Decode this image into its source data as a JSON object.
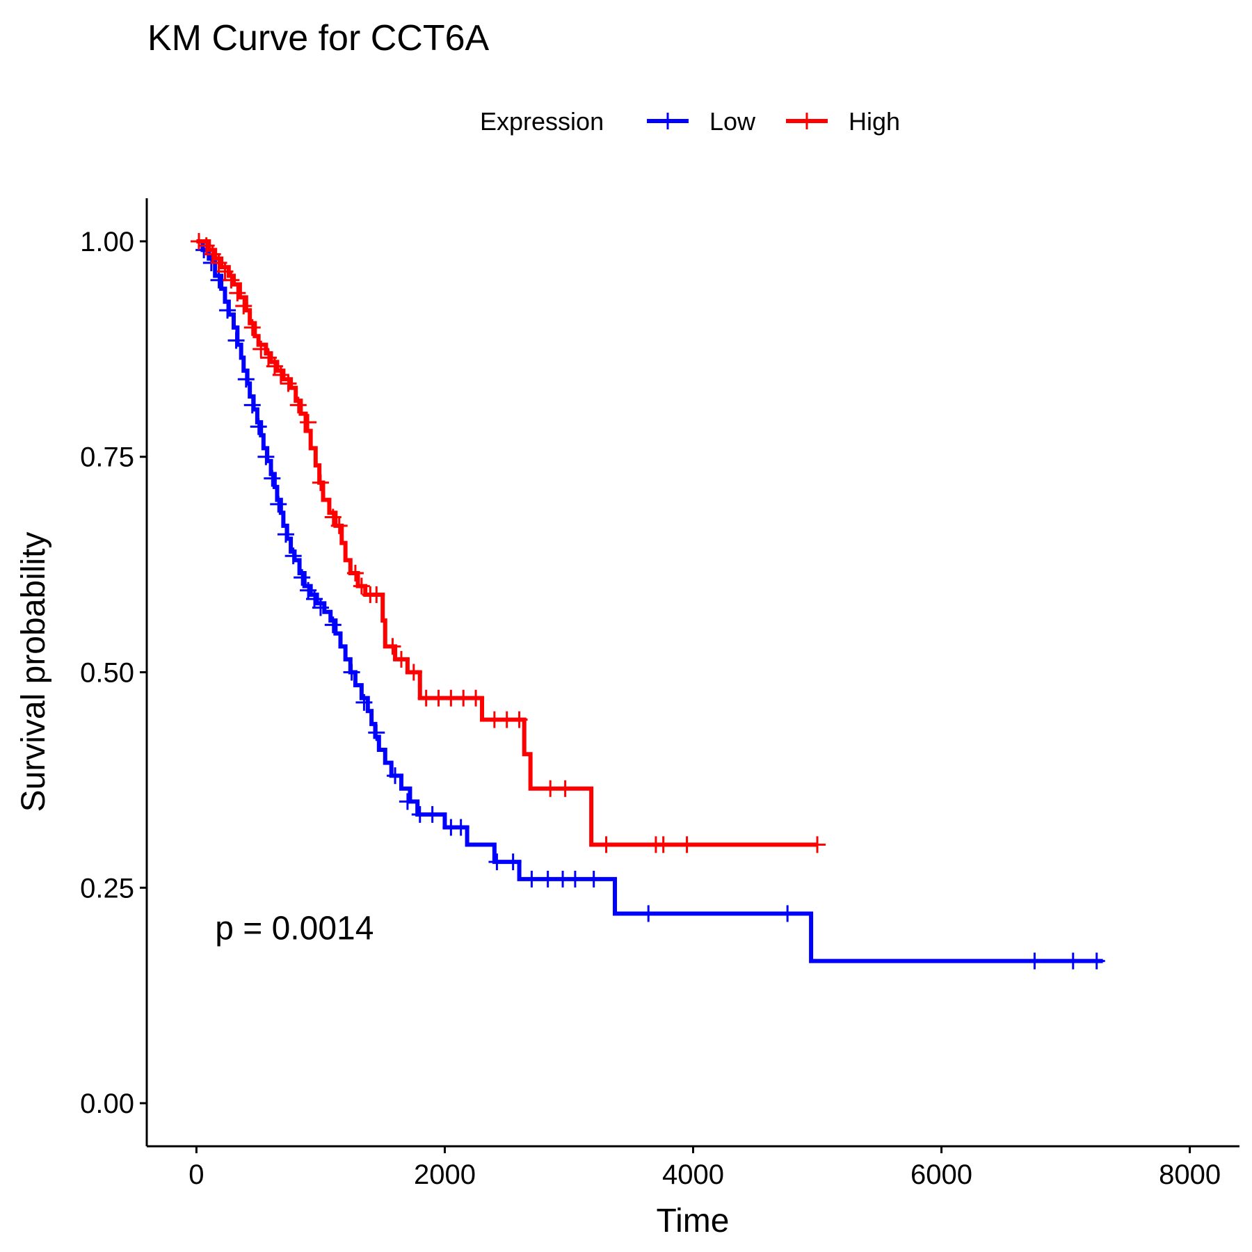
{
  "chart_data": {
    "type": "line",
    "subtype": "kaplan-meier step curve",
    "title": "KM Curve for CCT6A",
    "xlabel": "Time",
    "ylabel": "Survival probability",
    "xlim": [
      -400,
      8400
    ],
    "ylim": [
      -0.05,
      1.05
    ],
    "xticks": [
      0,
      2000,
      4000,
      6000,
      8000
    ],
    "xtick_labels": [
      "0",
      "2000",
      "4000",
      "6000",
      "8000"
    ],
    "yticks": [
      0,
      0.25,
      0.5,
      0.75,
      1.0
    ],
    "ytick_labels": [
      "0.00",
      "0.25",
      "0.50",
      "0.75",
      "1.00"
    ],
    "grid": false,
    "legend": {
      "title": "Expression",
      "placement": "top",
      "entries": [
        "Low",
        "High"
      ]
    },
    "annotation": {
      "text": "p = 0.0014",
      "x": 150,
      "y": 0.19
    },
    "series": [
      {
        "name": "Low",
        "color": "#0000FF",
        "steps": [
          [
            0,
            1.0
          ],
          [
            50,
            0.99
          ],
          [
            100,
            0.98
          ],
          [
            150,
            0.96
          ],
          [
            200,
            0.945
          ],
          [
            230,
            0.93
          ],
          [
            260,
            0.915
          ],
          [
            300,
            0.9
          ],
          [
            330,
            0.88
          ],
          [
            360,
            0.865
          ],
          [
            380,
            0.85
          ],
          [
            410,
            0.835
          ],
          [
            430,
            0.82
          ],
          [
            460,
            0.805
          ],
          [
            490,
            0.79
          ],
          [
            520,
            0.775
          ],
          [
            540,
            0.76
          ],
          [
            570,
            0.745
          ],
          [
            600,
            0.73
          ],
          [
            630,
            0.715
          ],
          [
            650,
            0.7
          ],
          [
            680,
            0.685
          ],
          [
            700,
            0.67
          ],
          [
            730,
            0.655
          ],
          [
            760,
            0.64
          ],
          [
            790,
            0.63
          ],
          [
            830,
            0.615
          ],
          [
            870,
            0.6
          ],
          [
            920,
            0.59
          ],
          [
            970,
            0.58
          ],
          [
            1030,
            0.57
          ],
          [
            1080,
            0.56
          ],
          [
            1120,
            0.545
          ],
          [
            1160,
            0.53
          ],
          [
            1200,
            0.515
          ],
          [
            1240,
            0.5
          ],
          [
            1280,
            0.485
          ],
          [
            1330,
            0.47
          ],
          [
            1380,
            0.455
          ],
          [
            1410,
            0.44
          ],
          [
            1440,
            0.425
          ],
          [
            1470,
            0.41
          ],
          [
            1520,
            0.395
          ],
          [
            1570,
            0.38
          ],
          [
            1650,
            0.365
          ],
          [
            1720,
            0.35
          ],
          [
            1780,
            0.335
          ],
          [
            2000,
            0.32
          ],
          [
            2180,
            0.3
          ],
          [
            2400,
            0.28
          ],
          [
            2600,
            0.26
          ],
          [
            3370,
            0.22
          ],
          [
            4950,
            0.165
          ],
          [
            7300,
            0.165
          ]
        ],
        "censors": [
          [
            60,
            0.99
          ],
          [
            120,
            0.975
          ],
          [
            180,
            0.955
          ],
          [
            250,
            0.92
          ],
          [
            320,
            0.885
          ],
          [
            400,
            0.84
          ],
          [
            450,
            0.81
          ],
          [
            500,
            0.785
          ],
          [
            560,
            0.75
          ],
          [
            610,
            0.725
          ],
          [
            660,
            0.695
          ],
          [
            720,
            0.66
          ],
          [
            780,
            0.635
          ],
          [
            850,
            0.61
          ],
          [
            900,
            0.595
          ],
          [
            950,
            0.585
          ],
          [
            1000,
            0.575
          ],
          [
            1100,
            0.555
          ],
          [
            1250,
            0.5
          ],
          [
            1350,
            0.465
          ],
          [
            1450,
            0.43
          ],
          [
            1600,
            0.38
          ],
          [
            1700,
            0.35
          ],
          [
            1800,
            0.335
          ],
          [
            1900,
            0.335
          ],
          [
            2050,
            0.32
          ],
          [
            2130,
            0.32
          ],
          [
            2420,
            0.28
          ],
          [
            2550,
            0.28
          ],
          [
            2700,
            0.26
          ],
          [
            2830,
            0.26
          ],
          [
            2950,
            0.26
          ],
          [
            3050,
            0.26
          ],
          [
            3200,
            0.26
          ],
          [
            3640,
            0.22
          ],
          [
            4760,
            0.22
          ],
          [
            6750,
            0.165
          ],
          [
            7060,
            0.165
          ],
          [
            7250,
            0.165
          ]
        ]
      },
      {
        "name": "High",
        "color": "#FF0000",
        "steps": [
          [
            0,
            1.0
          ],
          [
            100,
            0.99
          ],
          [
            150,
            0.98
          ],
          [
            200,
            0.97
          ],
          [
            260,
            0.96
          ],
          [
            300,
            0.95
          ],
          [
            350,
            0.935
          ],
          [
            400,
            0.92
          ],
          [
            430,
            0.905
          ],
          [
            470,
            0.89
          ],
          [
            500,
            0.88
          ],
          [
            560,
            0.87
          ],
          [
            600,
            0.86
          ],
          [
            650,
            0.85
          ],
          [
            700,
            0.84
          ],
          [
            760,
            0.83
          ],
          [
            800,
            0.815
          ],
          [
            840,
            0.8
          ],
          [
            880,
            0.78
          ],
          [
            920,
            0.76
          ],
          [
            960,
            0.74
          ],
          [
            990,
            0.72
          ],
          [
            1020,
            0.7
          ],
          [
            1070,
            0.685
          ],
          [
            1120,
            0.67
          ],
          [
            1170,
            0.65
          ],
          [
            1200,
            0.63
          ],
          [
            1240,
            0.615
          ],
          [
            1300,
            0.6
          ],
          [
            1360,
            0.59
          ],
          [
            1500,
            0.56
          ],
          [
            1520,
            0.53
          ],
          [
            1600,
            0.515
          ],
          [
            1700,
            0.5
          ],
          [
            1800,
            0.47
          ],
          [
            2300,
            0.445
          ],
          [
            2640,
            0.405
          ],
          [
            2690,
            0.365
          ],
          [
            3180,
            0.3
          ],
          [
            5000,
            0.3
          ]
        ],
        "censors": [
          [
            20,
            1.0
          ],
          [
            80,
            0.995
          ],
          [
            130,
            0.985
          ],
          [
            180,
            0.975
          ],
          [
            230,
            0.965
          ],
          [
            280,
            0.955
          ],
          [
            330,
            0.94
          ],
          [
            380,
            0.925
          ],
          [
            450,
            0.9
          ],
          [
            520,
            0.875
          ],
          [
            580,
            0.865
          ],
          [
            630,
            0.855
          ],
          [
            680,
            0.845
          ],
          [
            740,
            0.835
          ],
          [
            820,
            0.81
          ],
          [
            900,
            0.79
          ],
          [
            1000,
            0.72
          ],
          [
            1100,
            0.68
          ],
          [
            1150,
            0.67
          ],
          [
            1280,
            0.615
          ],
          [
            1330,
            0.6
          ],
          [
            1400,
            0.59
          ],
          [
            1450,
            0.59
          ],
          [
            1580,
            0.53
          ],
          [
            1650,
            0.515
          ],
          [
            1750,
            0.5
          ],
          [
            1850,
            0.47
          ],
          [
            1950,
            0.47
          ],
          [
            2050,
            0.47
          ],
          [
            2150,
            0.47
          ],
          [
            2250,
            0.47
          ],
          [
            2400,
            0.445
          ],
          [
            2500,
            0.445
          ],
          [
            2600,
            0.445
          ],
          [
            2850,
            0.365
          ],
          [
            2970,
            0.365
          ],
          [
            3300,
            0.3
          ],
          [
            3700,
            0.3
          ],
          [
            3760,
            0.3
          ],
          [
            3950,
            0.3
          ],
          [
            5000,
            0.3
          ]
        ]
      }
    ]
  }
}
